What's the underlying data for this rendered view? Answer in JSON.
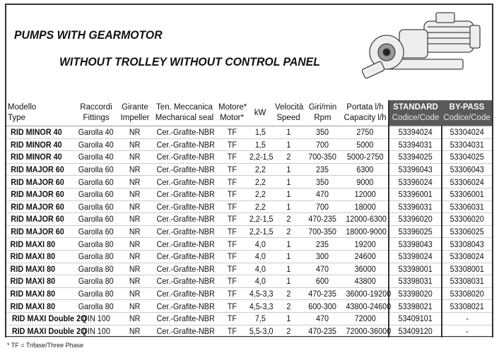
{
  "title_line1": "PUMPS WITH GEARMOTOR",
  "title_line2": "WITHOUT TROLLEY WITHOUT CONTROL PANEL",
  "columns": [
    {
      "it": "Modello",
      "en": "Type"
    },
    {
      "it": "Raccordi",
      "en": "Fittings"
    },
    {
      "it": "Girante",
      "en": "Impeller"
    },
    {
      "it": "Ten. Meccanica",
      "en": "Mechanical seal"
    },
    {
      "it": "Motore*",
      "en": "Motor*"
    },
    {
      "it": "kW",
      "en": ""
    },
    {
      "it": "Velocità",
      "en": "Speed"
    },
    {
      "it": "Giri/min",
      "en": "Rpm"
    },
    {
      "it": "Portata l/h",
      "en": "Capacity l/h"
    },
    {
      "it": "STANDARD",
      "en": "Codice/Code"
    },
    {
      "it": "BY-PASS",
      "en": "Codice/Code"
    }
  ],
  "rows": [
    [
      "RID MINOR 40",
      "Garolla 40",
      "NR",
      "Cer.-Grafite-NBR",
      "TF",
      "1,5",
      "1",
      "350",
      "2750",
      "53394024",
      "53304024"
    ],
    [
      "RID MINOR 40",
      "Garolla 40",
      "NR",
      "Cer.-Grafite-NBR",
      "TF",
      "1,5",
      "1",
      "700",
      "5000",
      "53394031",
      "53304031"
    ],
    [
      "RID MINOR 40",
      "Garolla 40",
      "NR",
      "Cer.-Grafite-NBR",
      "TF",
      "2,2-1,5",
      "2",
      "700-350",
      "5000-2750",
      "53394025",
      "53304025"
    ],
    [
      "RID MAJOR 60",
      "Garolla 60",
      "NR",
      "Cer.-Grafite-NBR",
      "TF",
      "2,2",
      "1",
      "235",
      "6300",
      "53396043",
      "53306043"
    ],
    [
      "RID MAJOR 60",
      "Garolla 60",
      "NR",
      "Cer.-Grafite-NBR",
      "TF",
      "2,2",
      "1",
      "350",
      "9000",
      "53396024",
      "53306024"
    ],
    [
      "RID MAJOR 60",
      "Garolla 60",
      "NR",
      "Cer.-Grafite-NBR",
      "TF",
      "2,2",
      "1",
      "470",
      "12000",
      "53396001",
      "53306001"
    ],
    [
      "RID MAJOR 60",
      "Garolla 60",
      "NR",
      "Cer.-Grafite-NBR",
      "TF",
      "2,2",
      "1",
      "700",
      "18000",
      "53396031",
      "53306031"
    ],
    [
      "RID MAJOR 60",
      "Garolla 60",
      "NR",
      "Cer.-Grafite-NBR",
      "TF",
      "2,2-1,5",
      "2",
      "470-235",
      "12000-6300",
      "53396020",
      "53306020"
    ],
    [
      "RID MAJOR 60",
      "Garolla 60",
      "NR",
      "Cer.-Grafite-NBR",
      "TF",
      "2,2-1,5",
      "2",
      "700-350",
      "18000-9000",
      "53396025",
      "53306025"
    ],
    [
      "RID MAXI 80",
      "Garolla 80",
      "NR",
      "Cer.-Grafite-NBR",
      "TF",
      "4,0",
      "1",
      "235",
      "19200",
      "53398043",
      "53308043"
    ],
    [
      "RID MAXI 80",
      "Garolla 80",
      "NR",
      "Cer.-Grafite-NBR",
      "TF",
      "4,0",
      "1",
      "300",
      "24600",
      "53398024",
      "53308024"
    ],
    [
      "RID MAXI 80",
      "Garolla 80",
      "NR",
      "Cer.-Grafite-NBR",
      "TF",
      "4,0",
      "1",
      "470",
      "36000",
      "53398001",
      "53308001"
    ],
    [
      "RID MAXI 80",
      "Garolla 80",
      "NR",
      "Cer.-Grafite-NBR",
      "TF",
      "4,0",
      "1",
      "600",
      "43800",
      "53398031",
      "53308031"
    ],
    [
      "RID MAXI 80",
      "Garolla 80",
      "NR",
      "Cer.-Grafite-NBR",
      "TF",
      "4,5-3,3",
      "2",
      "470-235",
      "36000-19200",
      "53398020",
      "53308020"
    ],
    [
      "RID MAXI 80",
      "Garolla 80",
      "NR",
      "Cer.-Grafite-NBR",
      "TF",
      "4,5-3,3",
      "2",
      "600-300",
      "43800-24600",
      "53398021",
      "53308021"
    ],
    [
      "RID MAXI Double 2Q",
      "DIN 100",
      "NR",
      "Cer.-Grafite-NBR",
      "TF",
      "7,5",
      "1",
      "470",
      "72000",
      "53409101",
      "-"
    ],
    [
      "RID MAXI Double 2Q",
      "DIN 100",
      "NR",
      "Cer.-Grafite-NBR",
      "TF",
      "5,5-3,0",
      "2",
      "470-235",
      "72000-36000",
      "53409120",
      "-"
    ]
  ],
  "footnote": "* TF = Trifase/Three Phase",
  "colors": {
    "code_header_bg": "#5a5a5a",
    "border": "#333333"
  }
}
